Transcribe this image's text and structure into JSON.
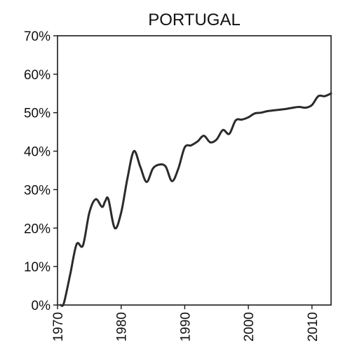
{
  "chart_data": {
    "type": "line",
    "title": "PORTUGAL",
    "xlabel": "",
    "ylabel": "",
    "xlim": [
      1970,
      2013
    ],
    "ylim": [
      0,
      70
    ],
    "x_ticks": [
      1970,
      1980,
      1990,
      2000,
      2010
    ],
    "x_tick_labels": [
      "1970",
      "1980",
      "1990",
      "2000",
      "2010"
    ],
    "y_ticks": [
      0,
      10,
      20,
      30,
      40,
      50,
      60,
      70
    ],
    "y_tick_labels": [
      "0%",
      "10%",
      "20%",
      "30%",
      "40%",
      "50%",
      "60%",
      "70%"
    ],
    "grid": false,
    "series": [
      {
        "color": "#2b2b2b",
        "x": [
          1970.5,
          1971,
          1972,
          1973,
          1974,
          1975,
          1976,
          1977,
          1977.5,
          1978,
          1979,
          1980,
          1981,
          1982,
          1983,
          1984,
          1985,
          1986,
          1987,
          1988,
          1989,
          1990,
          1991,
          1992,
          1993,
          1994,
          1995,
          1996,
          1997,
          1998,
          1999,
          2000,
          2001,
          2002,
          2003,
          2004,
          2005,
          2006,
          2007,
          2008,
          2009,
          2010,
          2011,
          2012,
          2013
        ],
        "values": [
          0,
          0.5,
          8,
          15.8,
          15.5,
          24,
          27.5,
          25.5,
          27,
          27.5,
          20,
          24,
          33,
          40,
          36,
          32,
          35.5,
          36.5,
          36,
          32.2,
          35.5,
          41,
          41.5,
          42.5,
          44,
          42.3,
          43,
          45.5,
          44.5,
          48,
          48.2,
          48.8,
          49.8,
          50,
          50.4,
          50.6,
          50.8,
          51,
          51.3,
          51.5,
          51.3,
          52,
          54.3,
          54.3,
          55
        ]
      }
    ]
  }
}
